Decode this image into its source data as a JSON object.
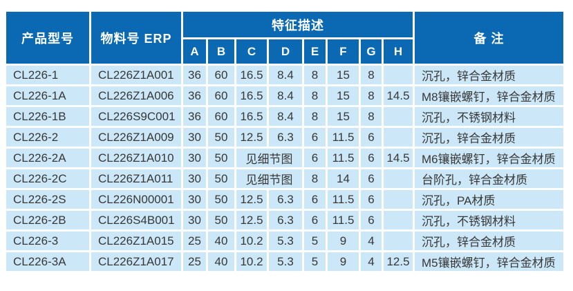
{
  "colors": {
    "header_bg": "#0a69b2",
    "header_text": "#ffffff",
    "row_bg": "#cce8f8",
    "body_text": "#373737",
    "page_bg": "#ffffff"
  },
  "table": {
    "headers": {
      "product": "产品型号",
      "erp": "物料号 ERP",
      "features": "特征描述",
      "feature_cols": [
        "A",
        "B",
        "C",
        "D",
        "E",
        "F",
        "G",
        "H"
      ],
      "remark": "备  注"
    },
    "rows": [
      {
        "model": "CL226-1",
        "erp": "CL226Z1A001",
        "A": "36",
        "B": "60",
        "C": "16.5",
        "D": "8.4",
        "E": "8",
        "F": "15",
        "G": "8",
        "H": "",
        "remark": "沉孔，锌合金材质"
      },
      {
        "model": "CL226-1A",
        "erp": "CL226Z1A006",
        "A": "36",
        "B": "60",
        "C": "16.5",
        "D": "8.4",
        "E": "8",
        "F": "15",
        "G": "8",
        "H": "14.5",
        "remark": "M8镶嵌螺钉，锌合金材质"
      },
      {
        "model": "CL226-1B",
        "erp": "CL226S9C001",
        "A": "36",
        "B": "60",
        "C": "16.5",
        "D": "8.4",
        "E": "8",
        "F": "15",
        "G": "8",
        "H": "",
        "remark": "沉孔，不锈钢材料"
      },
      {
        "model": "CL226-2",
        "erp": "CL226Z1A009",
        "A": "30",
        "B": "50",
        "C": "12.5",
        "D": "6.3",
        "E": "6",
        "F": "11.5",
        "G": "6",
        "H": "",
        "remark": "沉孔，锌合金材质"
      },
      {
        "model": "CL226-2A",
        "erp": "CL226Z1A010",
        "A": "30",
        "B": "50",
        "CD": "见细节图",
        "E": "6",
        "F": "11.5",
        "G": "6",
        "H": "14.5",
        "remark": "M6镶嵌螺钉，锌合金材质"
      },
      {
        "model": "CL226-2C",
        "erp": "CL226Z1A011",
        "A": "30",
        "B": "50",
        "CD": "见细节图",
        "E": "8",
        "F": "14",
        "G": "6",
        "H": "",
        "remark": "台阶孔，锌合金材质"
      },
      {
        "model": "CL226-2S",
        "erp": "CL226N00001",
        "A": "30",
        "B": "50",
        "C": "12.5",
        "D": "6.3",
        "E": "6",
        "F": "11.5",
        "G": "6",
        "H": "",
        "remark": "沉孔，PA材质"
      },
      {
        "model": "CL226-2B",
        "erp": "CL226S4B001",
        "A": "30",
        "B": "50",
        "C": "12.5",
        "D": "6.3",
        "E": "6",
        "F": "11.5",
        "G": "6",
        "H": "",
        "remark": "沉孔，不锈钢材料"
      },
      {
        "model": "CL226-3",
        "erp": "CL226Z1A015",
        "A": "25",
        "B": "40",
        "C": "10.2",
        "D": "5.3",
        "E": "5",
        "F": "9",
        "G": "4",
        "H": "",
        "remark": "沉孔，锌合金材质"
      },
      {
        "model": "CL226-3A",
        "erp": "CL226Z1A017",
        "A": "25",
        "B": "40",
        "C": "10.2",
        "D": "5.3",
        "E": "5",
        "F": "9",
        "G": "4",
        "H": "12.5",
        "remark": "M5镶嵌螺钉，锌合金材质"
      }
    ]
  }
}
